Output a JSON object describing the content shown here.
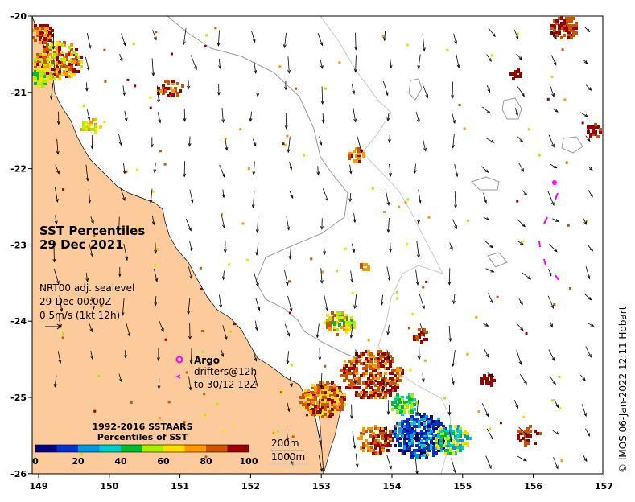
{
  "map": {
    "title_line1": "SST Percentiles",
    "title_line2": "29 Dec 2021",
    "product": "NRT00 adj. sealevel",
    "time": "29-Dec 00:00Z",
    "vector_scale": "0.5m/s (1kt 12h)",
    "argo_label": "Argo",
    "drifters_line1": "drifters@12h",
    "drifters_line2": "to 30/12 12Z",
    "copyright": "© IMOS 06-Jan-2022 12:11 Hobart",
    "x_ticks": [
      "149",
      "150",
      "151",
      "152",
      "153",
      "154",
      "155",
      "156",
      "157"
    ],
    "y_ticks": [
      "-20",
      "-21",
      "-22",
      "-23",
      "-24",
      "-25",
      "-26"
    ],
    "colorbar": {
      "title_line1": "1992-2016 SSTAARS",
      "title_line2": "Percentiles of SST",
      "tick_labels": [
        "0",
        "20",
        "40",
        "60",
        "80",
        "100"
      ],
      "colors": [
        "#00007f",
        "#0033cc",
        "#0099dd",
        "#00cccc",
        "#00bb33",
        "#aaee00",
        "#ffdd00",
        "#ff9900",
        "#cc5500",
        "#990000"
      ]
    },
    "isobaths": [
      "200m",
      "1000m"
    ],
    "colors": {
      "land": "#fdcb9b",
      "argo": "#ff00ff",
      "isobath_200": "#9a9a9a",
      "isobath_1000": "#c8c8c8"
    }
  }
}
